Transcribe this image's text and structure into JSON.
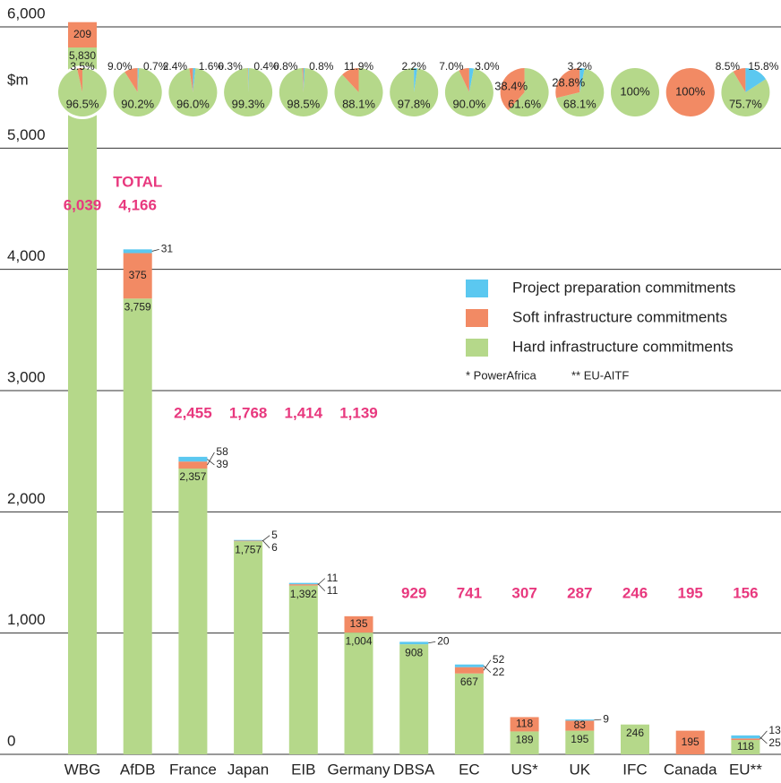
{
  "chart_data": {
    "type": "stacked_bar",
    "y_unit": "$m",
    "total_label": "TOTAL",
    "categories": [
      "WBG",
      "AfDB",
      "France",
      "Japan",
      "EIB",
      "Germany",
      "DBSA",
      "EC",
      "US*",
      "UK",
      "IFC",
      "Canada",
      "EU**"
    ],
    "ylim": [
      0,
      6000
    ],
    "yticks": [
      0,
      {
        "value": 1000,
        "label": "1,000"
      },
      {
        "value": 2000,
        "label": "2,000"
      },
      {
        "value": 3000,
        "label": "3,000"
      },
      {
        "value": 4000,
        "label": "4,000"
      },
      {
        "value": 5000,
        "label": "5,000"
      },
      {
        "value": 6000,
        "label": "6,000"
      }
    ],
    "grid": true,
    "series": [
      {
        "name": "Project preparation commitments",
        "color": "#5bc8f0",
        "values": [
          null,
          31,
          39,
          6,
          11,
          null,
          20,
          22,
          null,
          9,
          null,
          null,
          25
        ],
        "pie_values": [
          null,
          0.7,
          1.6,
          0.4,
          0.8,
          null,
          2.2,
          3.0,
          null,
          3.2,
          null,
          null,
          15.8
        ],
        "pie_value_labels": [
          null,
          "0.7%",
          "1.6%",
          "0.4%",
          "0.8%",
          null,
          "2.2%",
          "3.0%",
          null,
          "3.2%",
          null,
          null,
          "15.8%"
        ]
      },
      {
        "name": "Soft infrastructure commitments",
        "color": "#f28a64",
        "values": [
          209,
          375,
          58,
          5,
          11,
          135,
          null,
          52,
          118,
          83,
          null,
          195,
          13
        ],
        "pie_values": [
          3.5,
          9.0,
          2.4,
          0.3,
          0.8,
          11.9,
          null,
          7.0,
          38.4,
          28.8,
          null,
          100,
          8.5
        ],
        "pie_value_labels": [
          "3.5%",
          "9.0%",
          "2.4%",
          "0.3%",
          "0.8%",
          "11.9%",
          null,
          "7.0%",
          "38.4%",
          "28.8%",
          null,
          "100%",
          "8.5%"
        ]
      },
      {
        "name": "Hard infrastructure commitments",
        "color": "#b5d88a",
        "values": [
          5830,
          3759,
          2357,
          1757,
          1392,
          1004,
          908,
          667,
          189,
          195,
          246,
          null,
          118
        ],
        "value_labels": [
          "5,830",
          "3,759",
          "2,357",
          "1,757",
          "1,392",
          "1,004",
          "908",
          "667",
          "189",
          "195",
          "246",
          null,
          "118"
        ],
        "pie_values": [
          96.5,
          90.2,
          96.0,
          99.3,
          98.5,
          88.1,
          97.8,
          90.0,
          61.6,
          68.1,
          100,
          null,
          75.7
        ],
        "pie_value_labels": [
          "96.5%",
          "90.2%",
          "96.0%",
          "99.3%",
          "98.5%",
          "88.1%",
          "97.8%",
          "90.0%",
          "61.6%",
          "68.1%",
          "100%",
          null,
          "75.7%"
        ]
      }
    ],
    "totals": [
      6039,
      4166,
      2455,
      1768,
      1414,
      1139,
      929,
      741,
      307,
      287,
      246,
      195,
      156
    ],
    "total_labels": [
      "6,039",
      "4,166",
      "2,455",
      "1,768",
      "1,414",
      "1,139",
      "929",
      "741",
      "307",
      "287",
      "246",
      "195",
      "156"
    ],
    "total_color": "#e8387e",
    "notes": [
      "* PowerAfrica",
      "** EU-AITF"
    ]
  }
}
